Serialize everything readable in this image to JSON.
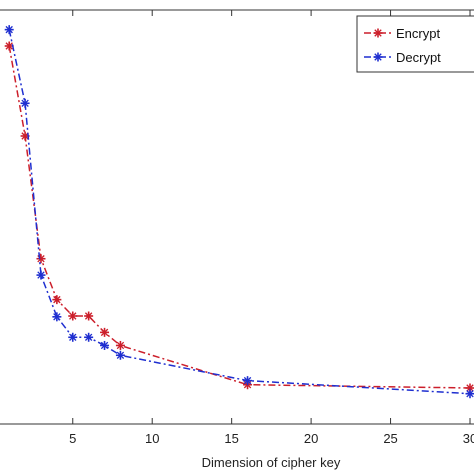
{
  "chart_data": {
    "type": "line",
    "title": "",
    "xlabel": "Dimension of cipher key",
    "ylabel": "",
    "xlim": [
      0,
      30
    ],
    "xticks": [
      5,
      10,
      15,
      20,
      25,
      30
    ],
    "xtick_labels": [
      "5",
      "10",
      "15",
      "20",
      "25",
      "30"
    ],
    "grid": false,
    "legend_position": "top-right",
    "series": [
      {
        "name": "Encrypt",
        "color": "#cc1f2b",
        "line_style": "dash-dot",
        "marker": "asterisk",
        "points": [
          [
            1,
            0.48
          ],
          [
            2,
            0.37
          ],
          [
            3,
            0.22
          ],
          [
            4,
            0.17
          ],
          [
            5,
            0.15
          ],
          [
            6,
            0.15
          ],
          [
            7,
            0.13
          ],
          [
            8,
            0.114
          ],
          [
            16,
            0.066
          ],
          [
            30,
            0.062
          ]
        ]
      },
      {
        "name": "Decrypt",
        "color": "#1f2fd0",
        "line_style": "dash-dot",
        "marker": "asterisk",
        "points": [
          [
            1,
            0.5
          ],
          [
            2,
            0.41
          ],
          [
            3,
            0.2
          ],
          [
            4,
            0.149
          ],
          [
            5,
            0.124
          ],
          [
            6,
            0.124
          ],
          [
            7,
            0.114
          ],
          [
            8,
            0.102
          ],
          [
            16,
            0.071
          ],
          [
            30,
            0.055
          ]
        ]
      }
    ]
  }
}
